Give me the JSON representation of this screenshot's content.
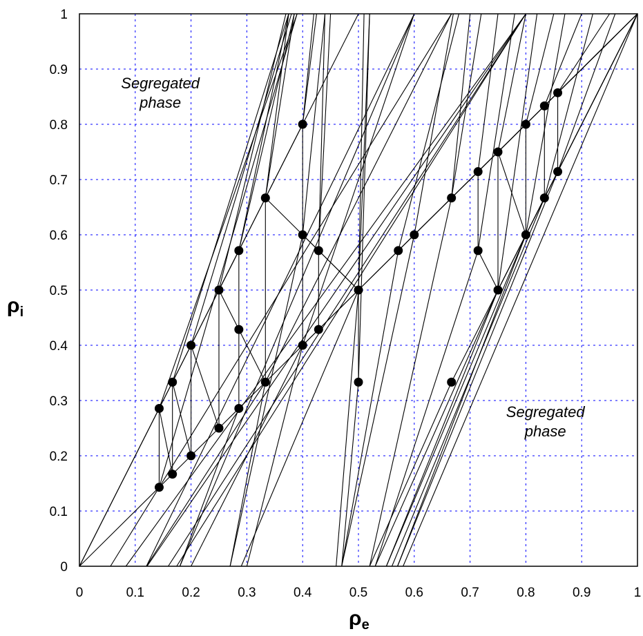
{
  "chart_data": {
    "type": "scatter",
    "xlabel": "ρ",
    "xlabel_sub": "e",
    "ylabel": "ρ",
    "ylabel_sub": "i",
    "xlim": [
      0,
      1
    ],
    "ylim": [
      0,
      1
    ],
    "x_ticks": [
      "0",
      "0.1",
      "0.2",
      "0.3",
      "0.4",
      "0.5",
      "0.6",
      "0.7",
      "0.8",
      "0.9",
      "1"
    ],
    "y_ticks": [
      "0",
      "0.1",
      "0.2",
      "0.3",
      "0.4",
      "0.5",
      "0.6",
      "0.7",
      "0.8",
      "0.9",
      "1"
    ],
    "grid": true,
    "grid_color": "#0000ff",
    "annotations": [
      {
        "lines": [
          "Segregated",
          "phase"
        ],
        "x": 0.145,
        "y": 0.865
      },
      {
        "lines": [
          "Segregated",
          "phase"
        ],
        "x": 0.835,
        "y": 0.27
      }
    ],
    "points": [
      [
        0.1429,
        0.2857
      ],
      [
        0.1429,
        0.1429
      ],
      [
        0.1667,
        0.3333
      ],
      [
        0.1667,
        0.1667
      ],
      [
        0.2,
        0.4
      ],
      [
        0.2,
        0.2
      ],
      [
        0.25,
        0.5
      ],
      [
        0.25,
        0.25
      ],
      [
        0.2857,
        0.5714
      ],
      [
        0.2857,
        0.4286
      ],
      [
        0.2857,
        0.2857
      ],
      [
        0.3333,
        0.6667
      ],
      [
        0.3333,
        0.3333
      ],
      [
        0.4,
        0.8
      ],
      [
        0.4,
        0.6
      ],
      [
        0.4,
        0.4
      ],
      [
        0.4286,
        0.5714
      ],
      [
        0.4286,
        0.4286
      ],
      [
        0.5,
        0.5
      ],
      [
        0.5,
        0.3333
      ],
      [
        0.5714,
        0.5714
      ],
      [
        0.6,
        0.6
      ],
      [
        0.6667,
        0.6667
      ],
      [
        0.6667,
        0.3333
      ],
      [
        0.7143,
        0.7143
      ],
      [
        0.7143,
        0.5714
      ],
      [
        0.75,
        0.75
      ],
      [
        0.75,
        0.5
      ],
      [
        0.8,
        0.8
      ],
      [
        0.8,
        0.6
      ],
      [
        0.8333,
        0.8333
      ],
      [
        0.8333,
        0.6667
      ],
      [
        0.8571,
        0.8571
      ],
      [
        0.8571,
        0.7143
      ]
    ],
    "segments": [
      [
        [
          0.1429,
          0.2857
        ],
        [
          0.1429,
          0.1429
        ]
      ],
      [
        [
          0.1667,
          0.3333
        ],
        [
          0.1667,
          0.1667
        ]
      ],
      [
        [
          0.2,
          0.4
        ],
        [
          0.2,
          0.2
        ]
      ],
      [
        [
          0.25,
          0.5
        ],
        [
          0.25,
          0.25
        ]
      ],
      [
        [
          0.2857,
          0.5714
        ],
        [
          0.2857,
          0.2857
        ]
      ],
      [
        [
          0.3333,
          0.6667
        ],
        [
          0.3333,
          0.3333
        ]
      ],
      [
        [
          0.4,
          0.8
        ],
        [
          0.4,
          0.4
        ]
      ],
      [
        [
          0.4286,
          0.5714
        ],
        [
          0.4286,
          0.4286
        ]
      ],
      [
        [
          0.5,
          0.5
        ],
        [
          0.5,
          0.3333
        ]
      ],
      [
        [
          0.7143,
          0.7143
        ],
        [
          0.7143,
          0.5714
        ]
      ],
      [
        [
          0.75,
          0.75
        ],
        [
          0.75,
          0.5
        ]
      ],
      [
        [
          0.8,
          0.8
        ],
        [
          0.8,
          0.6
        ]
      ],
      [
        [
          0.8333,
          0.8333
        ],
        [
          0.8333,
          0.6667
        ]
      ],
      [
        [
          0.8571,
          0.8571
        ],
        [
          0.8571,
          0.7143
        ]
      ],
      [
        [
          0,
          0
        ],
        [
          0.1429,
          0.2857
        ]
      ],
      [
        [
          0.1429,
          0.2857
        ],
        [
          0.1667,
          0.3333
        ]
      ],
      [
        [
          0.1429,
          0.2857
        ],
        [
          0.1667,
          0.1667
        ]
      ],
      [
        [
          0.1667,
          0.3333
        ],
        [
          0.2,
          0.4
        ]
      ],
      [
        [
          0.1667,
          0.3333
        ],
        [
          0.2,
          0.2
        ]
      ],
      [
        [
          0.2,
          0.4
        ],
        [
          0.25,
          0.5
        ]
      ],
      [
        [
          0.2,
          0.4
        ],
        [
          0.25,
          0.25
        ]
      ],
      [
        [
          0.25,
          0.5
        ],
        [
          0.2857,
          0.5714
        ]
      ],
      [
        [
          0.25,
          0.5
        ],
        [
          0.2857,
          0.4286
        ]
      ],
      [
        [
          0.25,
          0.5
        ],
        [
          0.3333,
          0.6667
        ]
      ],
      [
        [
          0.2857,
          0.4286
        ],
        [
          0.3333,
          0.3333
        ]
      ],
      [
        [
          0.3333,
          0.6667
        ],
        [
          0.4,
          0.8
        ]
      ],
      [
        [
          0.3333,
          0.6667
        ],
        [
          0.4,
          0.6
        ]
      ],
      [
        [
          0.4,
          0.6
        ],
        [
          0.4286,
          0.5714
        ]
      ],
      [
        [
          0.4,
          0.6
        ],
        [
          0.5,
          0.5
        ]
      ],
      [
        [
          0.4286,
          0.5714
        ],
        [
          0.5,
          0.5
        ]
      ],
      [
        [
          0.4,
          0.4
        ],
        [
          0.4286,
          0.4286
        ]
      ],
      [
        [
          0.4286,
          0.4286
        ],
        [
          0.5,
          0.5
        ]
      ],
      [
        [
          0,
          0
        ],
        [
          0.1429,
          0.1429
        ]
      ],
      [
        [
          0.1429,
          0.1429
        ],
        [
          0.1667,
          0.1667
        ]
      ],
      [
        [
          0.1667,
          0.1667
        ],
        [
          0.2,
          0.2
        ]
      ],
      [
        [
          0.2,
          0.2
        ],
        [
          0.25,
          0.25
        ]
      ],
      [
        [
          0.25,
          0.25
        ],
        [
          0.2857,
          0.2857
        ]
      ],
      [
        [
          0.2857,
          0.2857
        ],
        [
          0.3333,
          0.3333
        ]
      ],
      [
        [
          0.3333,
          0.3333
        ],
        [
          0.4,
          0.4
        ]
      ],
      [
        [
          0.4,
          0.4
        ],
        [
          0.5,
          0.5
        ]
      ],
      [
        [
          0.5,
          0.5
        ],
        [
          0.5714,
          0.5714
        ]
      ],
      [
        [
          0.5714,
          0.5714
        ],
        [
          0.6,
          0.6
        ]
      ],
      [
        [
          0.6,
          0.6
        ],
        [
          0.6667,
          0.6667
        ]
      ],
      [
        [
          0.6667,
          0.6667
        ],
        [
          0.7143,
          0.7143
        ]
      ],
      [
        [
          0.7143,
          0.7143
        ],
        [
          0.75,
          0.75
        ]
      ],
      [
        [
          0.75,
          0.75
        ],
        [
          0.8,
          0.8
        ]
      ],
      [
        [
          0.8,
          0.8
        ],
        [
          0.8333,
          0.8333
        ]
      ],
      [
        [
          0.8333,
          0.8333
        ],
        [
          0.8571,
          0.8571
        ]
      ],
      [
        [
          0.8571,
          0.8571
        ],
        [
          1,
          1
        ]
      ],
      [
        [
          0.7143,
          0.5714
        ],
        [
          0.75,
          0.5
        ]
      ],
      [
        [
          0.75,
          0.5
        ],
        [
          0.8,
          0.6
        ]
      ],
      [
        [
          0.8,
          0.6
        ],
        [
          0.8333,
          0.6667
        ]
      ],
      [
        [
          0.8333,
          0.6667
        ],
        [
          0.8571,
          0.7143
        ]
      ],
      [
        [
          0.8571,
          0.7143
        ],
        [
          1,
          1
        ]
      ],
      [
        [
          0.75,
          0.5
        ],
        [
          1,
          1
        ]
      ],
      [
        [
          0.8,
          0.6
        ],
        [
          1,
          1
        ]
      ],
      [
        [
          0.8333,
          0.8333
        ],
        [
          1,
          1
        ]
      ],
      [
        [
          0.75,
          0.75
        ],
        [
          0.8,
          0.6
        ]
      ],
      [
        [
          0.4,
          0.4
        ],
        [
          0.6,
          1
        ]
      ],
      [
        [
          0.3333,
          0.3333
        ],
        [
          0.6667,
          1
        ]
      ],
      [
        [
          0.5,
          0.5
        ],
        [
          1,
          1
        ]
      ],
      [
        [
          0.5714,
          0.5714
        ],
        [
          1,
          1
        ]
      ],
      [
        [
          0.6667,
          0.3333
        ],
        [
          1,
          1
        ]
      ],
      [
        [
          0.6,
          0.6
        ],
        [
          1,
          1
        ]
      ],
      [
        [
          0,
          0
        ],
        [
          0.5,
          1
        ]
      ],
      [
        [
          0.0556,
          0
        ],
        [
          0.6667,
          1
        ]
      ],
      [
        [
          0.0833,
          0
        ],
        [
          0.8,
          1
        ]
      ],
      [
        [
          0.1212,
          0
        ],
        [
          0.8,
          1
        ]
      ],
      [
        [
          0.1591,
          0
        ],
        [
          0.8,
          1
        ]
      ],
      [
        [
          0.1742,
          0
        ],
        [
          0.8,
          1
        ]
      ],
      [
        [
          0.12,
          0
        ],
        [
          0.6,
          1
        ]
      ],
      [
        [
          0.18,
          0
        ],
        [
          0.6,
          1
        ]
      ],
      [
        [
          0.2,
          0
        ],
        [
          0.4,
          0.4
        ]
      ],
      [
        [
          0.12,
          0
        ],
        [
          0.3333,
          0.3333
        ]
      ],
      [
        [
          0.18,
          0
        ],
        [
          0.2857,
          0.2857
        ]
      ],
      [
        [
          0.27,
          0
        ],
        [
          0.4,
          0.6
        ]
      ],
      [
        [
          0.27,
          0
        ],
        [
          0.3333,
          0.3333
        ]
      ],
      [
        [
          0.29,
          0
        ],
        [
          0.5,
          0.5
        ]
      ],
      [
        [
          0.3,
          0
        ],
        [
          0.4,
          0.4
        ]
      ],
      [
        [
          0.46,
          0
        ],
        [
          0.5,
          0.5
        ]
      ],
      [
        [
          0.47,
          0
        ],
        [
          0.6,
          0.6
        ]
      ],
      [
        [
          0.47,
          0
        ],
        [
          0.5,
          0.3333
        ]
      ],
      [
        [
          0.47,
          0
        ],
        [
          0.5714,
          0.5714
        ]
      ],
      [
        [
          0.52,
          0
        ],
        [
          0.6667,
          0.6667
        ]
      ],
      [
        [
          0.52,
          0
        ],
        [
          0.6667,
          0.3333
        ]
      ],
      [
        [
          0.53,
          0
        ],
        [
          0.75,
          0.5
        ]
      ],
      [
        [
          0.53,
          0
        ],
        [
          0.7143,
          0.5714
        ]
      ],
      [
        [
          0.55,
          0
        ],
        [
          0.75,
          0.5
        ]
      ],
      [
        [
          0.55,
          0
        ],
        [
          0.8,
          0.6
        ]
      ],
      [
        [
          0.56,
          0
        ],
        [
          0.8333,
          0.6667
        ]
      ],
      [
        [
          0.57,
          0
        ],
        [
          0.8571,
          0.7143
        ]
      ],
      [
        [
          0.57,
          0
        ],
        [
          0.8,
          0.6
        ]
      ],
      [
        [
          0.58,
          0
        ],
        [
          1,
          1
        ]
      ],
      [
        [
          0.3333,
          0.6667
        ],
        [
          0.375,
          1
        ]
      ],
      [
        [
          0.3333,
          0.6667
        ],
        [
          0.385,
          1
        ]
      ],
      [
        [
          0.2857,
          0.5714
        ],
        [
          0.375,
          1
        ]
      ],
      [
        [
          0.2857,
          0.5714
        ],
        [
          0.385,
          1
        ]
      ],
      [
        [
          0.25,
          0.5
        ],
        [
          0.37,
          1
        ]
      ],
      [
        [
          0.2,
          0.4
        ],
        [
          0.38,
          1
        ]
      ],
      [
        [
          0.1667,
          0.3333
        ],
        [
          0.375,
          1
        ]
      ],
      [
        [
          0.1429,
          0.2857
        ],
        [
          0.39,
          1
        ]
      ],
      [
        [
          0.1429,
          0.1429
        ],
        [
          0.39,
          1
        ]
      ],
      [
        [
          0.4,
          0.8
        ],
        [
          0.42,
          1
        ]
      ],
      [
        [
          0.4,
          0.8
        ],
        [
          0.425,
          1
        ]
      ],
      [
        [
          0.4286,
          0.5714
        ],
        [
          0.44,
          1
        ]
      ],
      [
        [
          0.4286,
          0.5714
        ],
        [
          0.45,
          1
        ]
      ],
      [
        [
          0.4,
          0.6
        ],
        [
          0.44,
          1
        ]
      ],
      [
        [
          0.5,
          0.5
        ],
        [
          0.51,
          1
        ]
      ],
      [
        [
          0.5,
          0.5
        ],
        [
          0.52,
          1
        ]
      ],
      [
        [
          0.5,
          0.3333
        ],
        [
          0.52,
          1
        ]
      ],
      [
        [
          0.5714,
          0.5714
        ],
        [
          0.68,
          1
        ]
      ],
      [
        [
          0.6,
          0.6
        ],
        [
          0.67,
          1
        ]
      ],
      [
        [
          0.6667,
          0.6667
        ],
        [
          0.7,
          1
        ]
      ],
      [
        [
          0.6667,
          0.6667
        ],
        [
          0.72,
          1
        ]
      ],
      [
        [
          0.7143,
          0.7143
        ],
        [
          0.75,
          1
        ]
      ],
      [
        [
          0.7143,
          0.5714
        ],
        [
          0.78,
          1
        ]
      ],
      [
        [
          0.75,
          0.75
        ],
        [
          0.8,
          1
        ]
      ],
      [
        [
          0.75,
          0.5
        ],
        [
          0.82,
          1
        ]
      ],
      [
        [
          0.8,
          0.8
        ],
        [
          0.85,
          1
        ]
      ],
      [
        [
          0.8,
          0.6
        ],
        [
          0.87,
          1
        ]
      ],
      [
        [
          0.8333,
          0.8333
        ],
        [
          0.9,
          1
        ]
      ],
      [
        [
          0.8333,
          0.6667
        ],
        [
          0.92,
          1
        ]
      ],
      [
        [
          0.8571,
          0.8571
        ],
        [
          0.95,
          1
        ]
      ],
      [
        [
          0.8571,
          0.7143
        ],
        [
          0.96,
          1
        ]
      ]
    ]
  }
}
